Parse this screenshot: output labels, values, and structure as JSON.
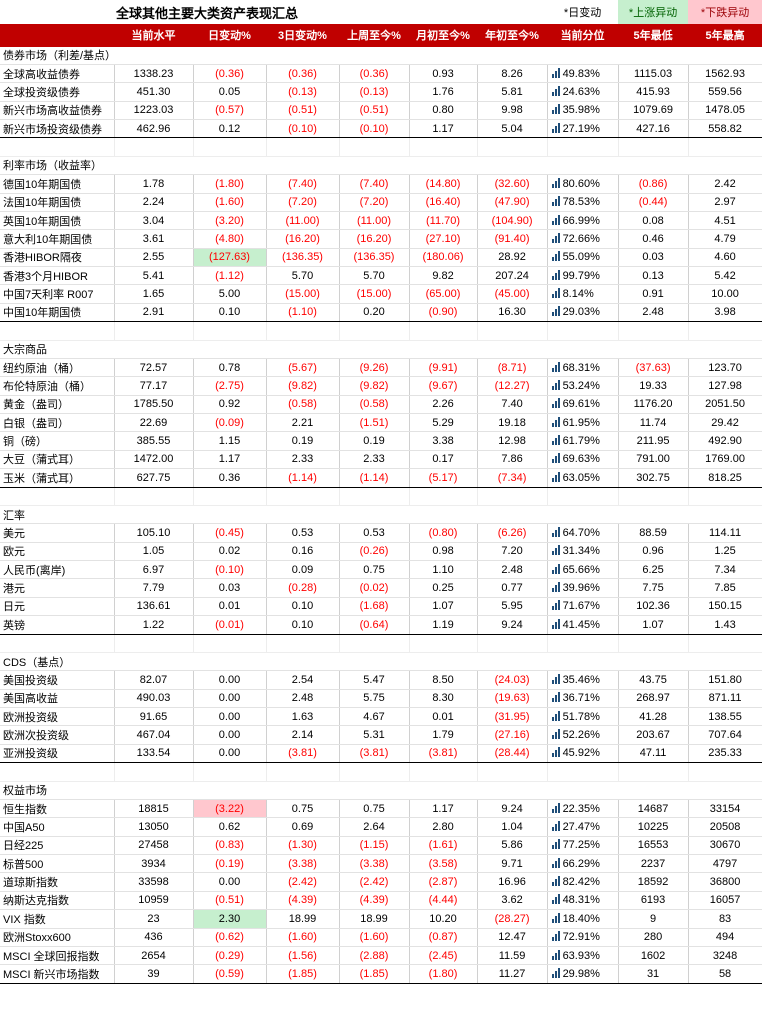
{
  "title": "全球其他主要大类资产表现汇总",
  "legend": {
    "day": "*日变动",
    "up": "*上涨异动",
    "down": "*下跌异动"
  },
  "headers": [
    "",
    "当前水平",
    "日变动%",
    "3日变动%",
    "上周至今%",
    "月初至今%",
    "年初至今%",
    "当前分位",
    "5年最低",
    "5年最高"
  ],
  "icons": {
    "percentile": "bar-signal-icon"
  },
  "colors": {
    "header_bg": "#c00000",
    "up_bg": "#c6efce",
    "down_bg": "#ffc7ce",
    "negative_text": "#ff0000"
  },
  "sections": [
    {
      "name": "债券市场（利差/基点）",
      "rows": [
        {
          "name": "全球高收益债券",
          "cells": [
            "1338.23",
            "(0.36)",
            "(0.36)",
            "(0.36)",
            "0.93",
            "8.26",
            "49.83%",
            "1115.03",
            "1562.93"
          ]
        },
        {
          "name": "全球投资级债券",
          "cells": [
            "451.30",
            "0.05",
            "(0.13)",
            "(0.13)",
            "1.76",
            "5.81",
            "24.63%",
            "415.93",
            "559.56"
          ]
        },
        {
          "name": "新兴市场高收益债券",
          "cells": [
            "1223.03",
            "(0.57)",
            "(0.51)",
            "(0.51)",
            "0.80",
            "9.98",
            "35.98%",
            "1079.69",
            "1478.05"
          ]
        },
        {
          "name": "新兴市场投资级债券",
          "cells": [
            "462.96",
            "0.12",
            "(0.10)",
            "(0.10)",
            "1.17",
            "5.04",
            "27.19%",
            "427.16",
            "558.82"
          ]
        }
      ]
    },
    {
      "name": "利率市场（收益率）",
      "rows": [
        {
          "name": "德国10年期国债",
          "cells": [
            "1.78",
            "(1.80)",
            "(7.40)",
            "(7.40)",
            "(14.80)",
            "(32.60)",
            "80.60%",
            "(0.86)",
            "2.42"
          ]
        },
        {
          "name": "法国10年期国债",
          "cells": [
            "2.24",
            "(1.60)",
            "(7.20)",
            "(7.20)",
            "(16.40)",
            "(47.90)",
            "78.53%",
            "(0.44)",
            "2.97"
          ]
        },
        {
          "name": "英国10年期国债",
          "cells": [
            "3.04",
            "(3.20)",
            "(11.00)",
            "(11.00)",
            "(11.70)",
            "(104.90)",
            "66.99%",
            "0.08",
            "4.51"
          ]
        },
        {
          "name": "意大利10年期国债",
          "cells": [
            "3.61",
            "(4.80)",
            "(16.20)",
            "(16.20)",
            "(27.10)",
            "(91.40)",
            "72.66%",
            "0.46",
            "4.79"
          ]
        },
        {
          "name": "香港HIBOR隔夜",
          "cells": [
            "2.55",
            "(127.63)",
            "(136.35)",
            "(136.35)",
            "(180.06)",
            "28.92",
            "55.09%",
            "0.03",
            "4.60"
          ],
          "hl": "up"
        },
        {
          "name": "香港3个月HIBOR",
          "cells": [
            "5.41",
            "(1.12)",
            "5.70",
            "5.70",
            "9.82",
            "207.24",
            "99.79%",
            "0.13",
            "5.42"
          ]
        },
        {
          "name": "中国7天利率 R007",
          "cells": [
            "1.65",
            "5.00",
            "(15.00)",
            "(15.00)",
            "(65.00)",
            "(45.00)",
            "8.14%",
            "0.91",
            "10.00"
          ]
        },
        {
          "name": "中国10年期国债",
          "cells": [
            "2.91",
            "0.10",
            "(1.10)",
            "0.20",
            "(0.90)",
            "16.30",
            "29.03%",
            "2.48",
            "3.98"
          ]
        }
      ]
    },
    {
      "name": "大宗商品",
      "rows": [
        {
          "name": "纽约原油（桶）",
          "cells": [
            "72.57",
            "0.78",
            "(5.67)",
            "(9.26)",
            "(9.91)",
            "(8.71)",
            "68.31%",
            "(37.63)",
            "123.70"
          ]
        },
        {
          "name": "布伦特原油（桶）",
          "cells": [
            "77.17",
            "(2.75)",
            "(9.82)",
            "(9.82)",
            "(9.67)",
            "(12.27)",
            "53.24%",
            "19.33",
            "127.98"
          ]
        },
        {
          "name": "黄金（盎司）",
          "cells": [
            "1785.50",
            "0.92",
            "(0.58)",
            "(0.58)",
            "2.26",
            "7.40",
            "69.61%",
            "1176.20",
            "2051.50"
          ]
        },
        {
          "name": "白银（盎司）",
          "cells": [
            "22.69",
            "(0.09)",
            "2.21",
            "(1.51)",
            "5.29",
            "19.18",
            "61.95%",
            "11.74",
            "29.42"
          ]
        },
        {
          "name": "铜（磅）",
          "cells": [
            "385.55",
            "1.15",
            "0.19",
            "0.19",
            "3.38",
            "12.98",
            "61.79%",
            "211.95",
            "492.90"
          ]
        },
        {
          "name": "大豆（蒲式耳）",
          "cells": [
            "1472.00",
            "1.17",
            "2.33",
            "2.33",
            "0.17",
            "7.86",
            "69.63%",
            "791.00",
            "1769.00"
          ]
        },
        {
          "name": "玉米（蒲式耳）",
          "cells": [
            "627.75",
            "0.36",
            "(1.14)",
            "(1.14)",
            "(5.17)",
            "(7.34)",
            "63.05%",
            "302.75",
            "818.25"
          ]
        }
      ]
    },
    {
      "name": "汇率",
      "rows": [
        {
          "name": "美元",
          "cells": [
            "105.10",
            "(0.45)",
            "0.53",
            "0.53",
            "(0.80)",
            "(6.26)",
            "64.70%",
            "88.59",
            "114.11"
          ]
        },
        {
          "name": "欧元",
          "cells": [
            "1.05",
            "0.02",
            "0.16",
            "(0.26)",
            "0.98",
            "7.20",
            "31.34%",
            "0.96",
            "1.25"
          ]
        },
        {
          "name": "人民币(离岸)",
          "cells": [
            "6.97",
            "(0.10)",
            "0.09",
            "0.75",
            "1.10",
            "2.48",
            "65.66%",
            "6.25",
            "7.34"
          ]
        },
        {
          "name": "港元",
          "cells": [
            "7.79",
            "0.03",
            "(0.28)",
            "(0.02)",
            "0.25",
            "0.77",
            "39.96%",
            "7.75",
            "7.85"
          ]
        },
        {
          "name": "日元",
          "cells": [
            "136.61",
            "0.01",
            "0.10",
            "(1.68)",
            "1.07",
            "5.95",
            "71.67%",
            "102.36",
            "150.15"
          ]
        },
        {
          "name": "英镑",
          "cells": [
            "1.22",
            "(0.01)",
            "0.10",
            "(0.64)",
            "1.19",
            "9.24",
            "41.45%",
            "1.07",
            "1.43"
          ]
        }
      ]
    },
    {
      "name": "CDS（基点）",
      "rows": [
        {
          "name": "美国投资级",
          "cells": [
            "82.07",
            "0.00",
            "2.54",
            "5.47",
            "8.50",
            "(24.03)",
            "35.46%",
            "43.75",
            "151.80"
          ]
        },
        {
          "name": "美国高收益",
          "cells": [
            "490.03",
            "0.00",
            "2.48",
            "5.75",
            "8.30",
            "(19.63)",
            "36.71%",
            "268.97",
            "871.11"
          ]
        },
        {
          "name": "欧洲投资级",
          "cells": [
            "91.65",
            "0.00",
            "1.63",
            "4.67",
            "0.01",
            "(31.95)",
            "51.78%",
            "41.28",
            "138.55"
          ]
        },
        {
          "name": "欧洲次投资级",
          "cells": [
            "467.04",
            "0.00",
            "2.14",
            "5.31",
            "1.79",
            "(27.16)",
            "52.26%",
            "203.67",
            "707.64"
          ]
        },
        {
          "name": "亚洲投资级",
          "cells": [
            "133.54",
            "0.00",
            "(3.81)",
            "(3.81)",
            "(3.81)",
            "(28.44)",
            "45.92%",
            "47.11",
            "235.33"
          ]
        }
      ]
    },
    {
      "name": "权益市场",
      "rows": [
        {
          "name": "恒生指数",
          "cells": [
            "18815",
            "(3.22)",
            "0.75",
            "0.75",
            "1.17",
            "9.24",
            "22.35%",
            "14687",
            "33154"
          ],
          "hl": "down"
        },
        {
          "name": "中国A50",
          "cells": [
            "13050",
            "0.62",
            "0.69",
            "2.64",
            "2.80",
            "1.04",
            "27.47%",
            "10225",
            "20508"
          ]
        },
        {
          "name": "日经225",
          "cells": [
            "27458",
            "(0.83)",
            "(1.30)",
            "(1.15)",
            "(1.61)",
            "5.86",
            "77.25%",
            "16553",
            "30670"
          ]
        },
        {
          "name": "标普500",
          "cells": [
            "3934",
            "(0.19)",
            "(3.38)",
            "(3.38)",
            "(3.58)",
            "9.71",
            "66.29%",
            "2237",
            "4797"
          ]
        },
        {
          "name": "道琼斯指数",
          "cells": [
            "33598",
            "0.00",
            "(2.42)",
            "(2.42)",
            "(2.87)",
            "16.96",
            "82.42%",
            "18592",
            "36800"
          ]
        },
        {
          "name": "纳斯达克指数",
          "cells": [
            "10959",
            "(0.51)",
            "(4.39)",
            "(4.39)",
            "(4.44)",
            "3.62",
            "48.31%",
            "6193",
            "16057"
          ]
        },
        {
          "name": "VIX 指数",
          "cells": [
            "23",
            "2.30",
            "18.99",
            "18.99",
            "10.20",
            "(28.27)",
            "18.40%",
            "9",
            "83"
          ],
          "hl": "up"
        },
        {
          "name": "欧洲Stoxx600",
          "cells": [
            "436",
            "(0.62)",
            "(1.60)",
            "(1.60)",
            "(0.87)",
            "12.47",
            "72.91%",
            "280",
            "494"
          ]
        },
        {
          "name": "MSCI 全球回报指数",
          "cells": [
            "2654",
            "(0.29)",
            "(1.56)",
            "(2.88)",
            "(2.45)",
            "11.59",
            "63.93%",
            "1602",
            "3248"
          ]
        },
        {
          "name": "MSCI 新兴市场指数",
          "cells": [
            "39",
            "(0.59)",
            "(1.85)",
            "(1.85)",
            "(1.80)",
            "11.27",
            "29.98%",
            "31",
            "58"
          ]
        }
      ]
    }
  ]
}
